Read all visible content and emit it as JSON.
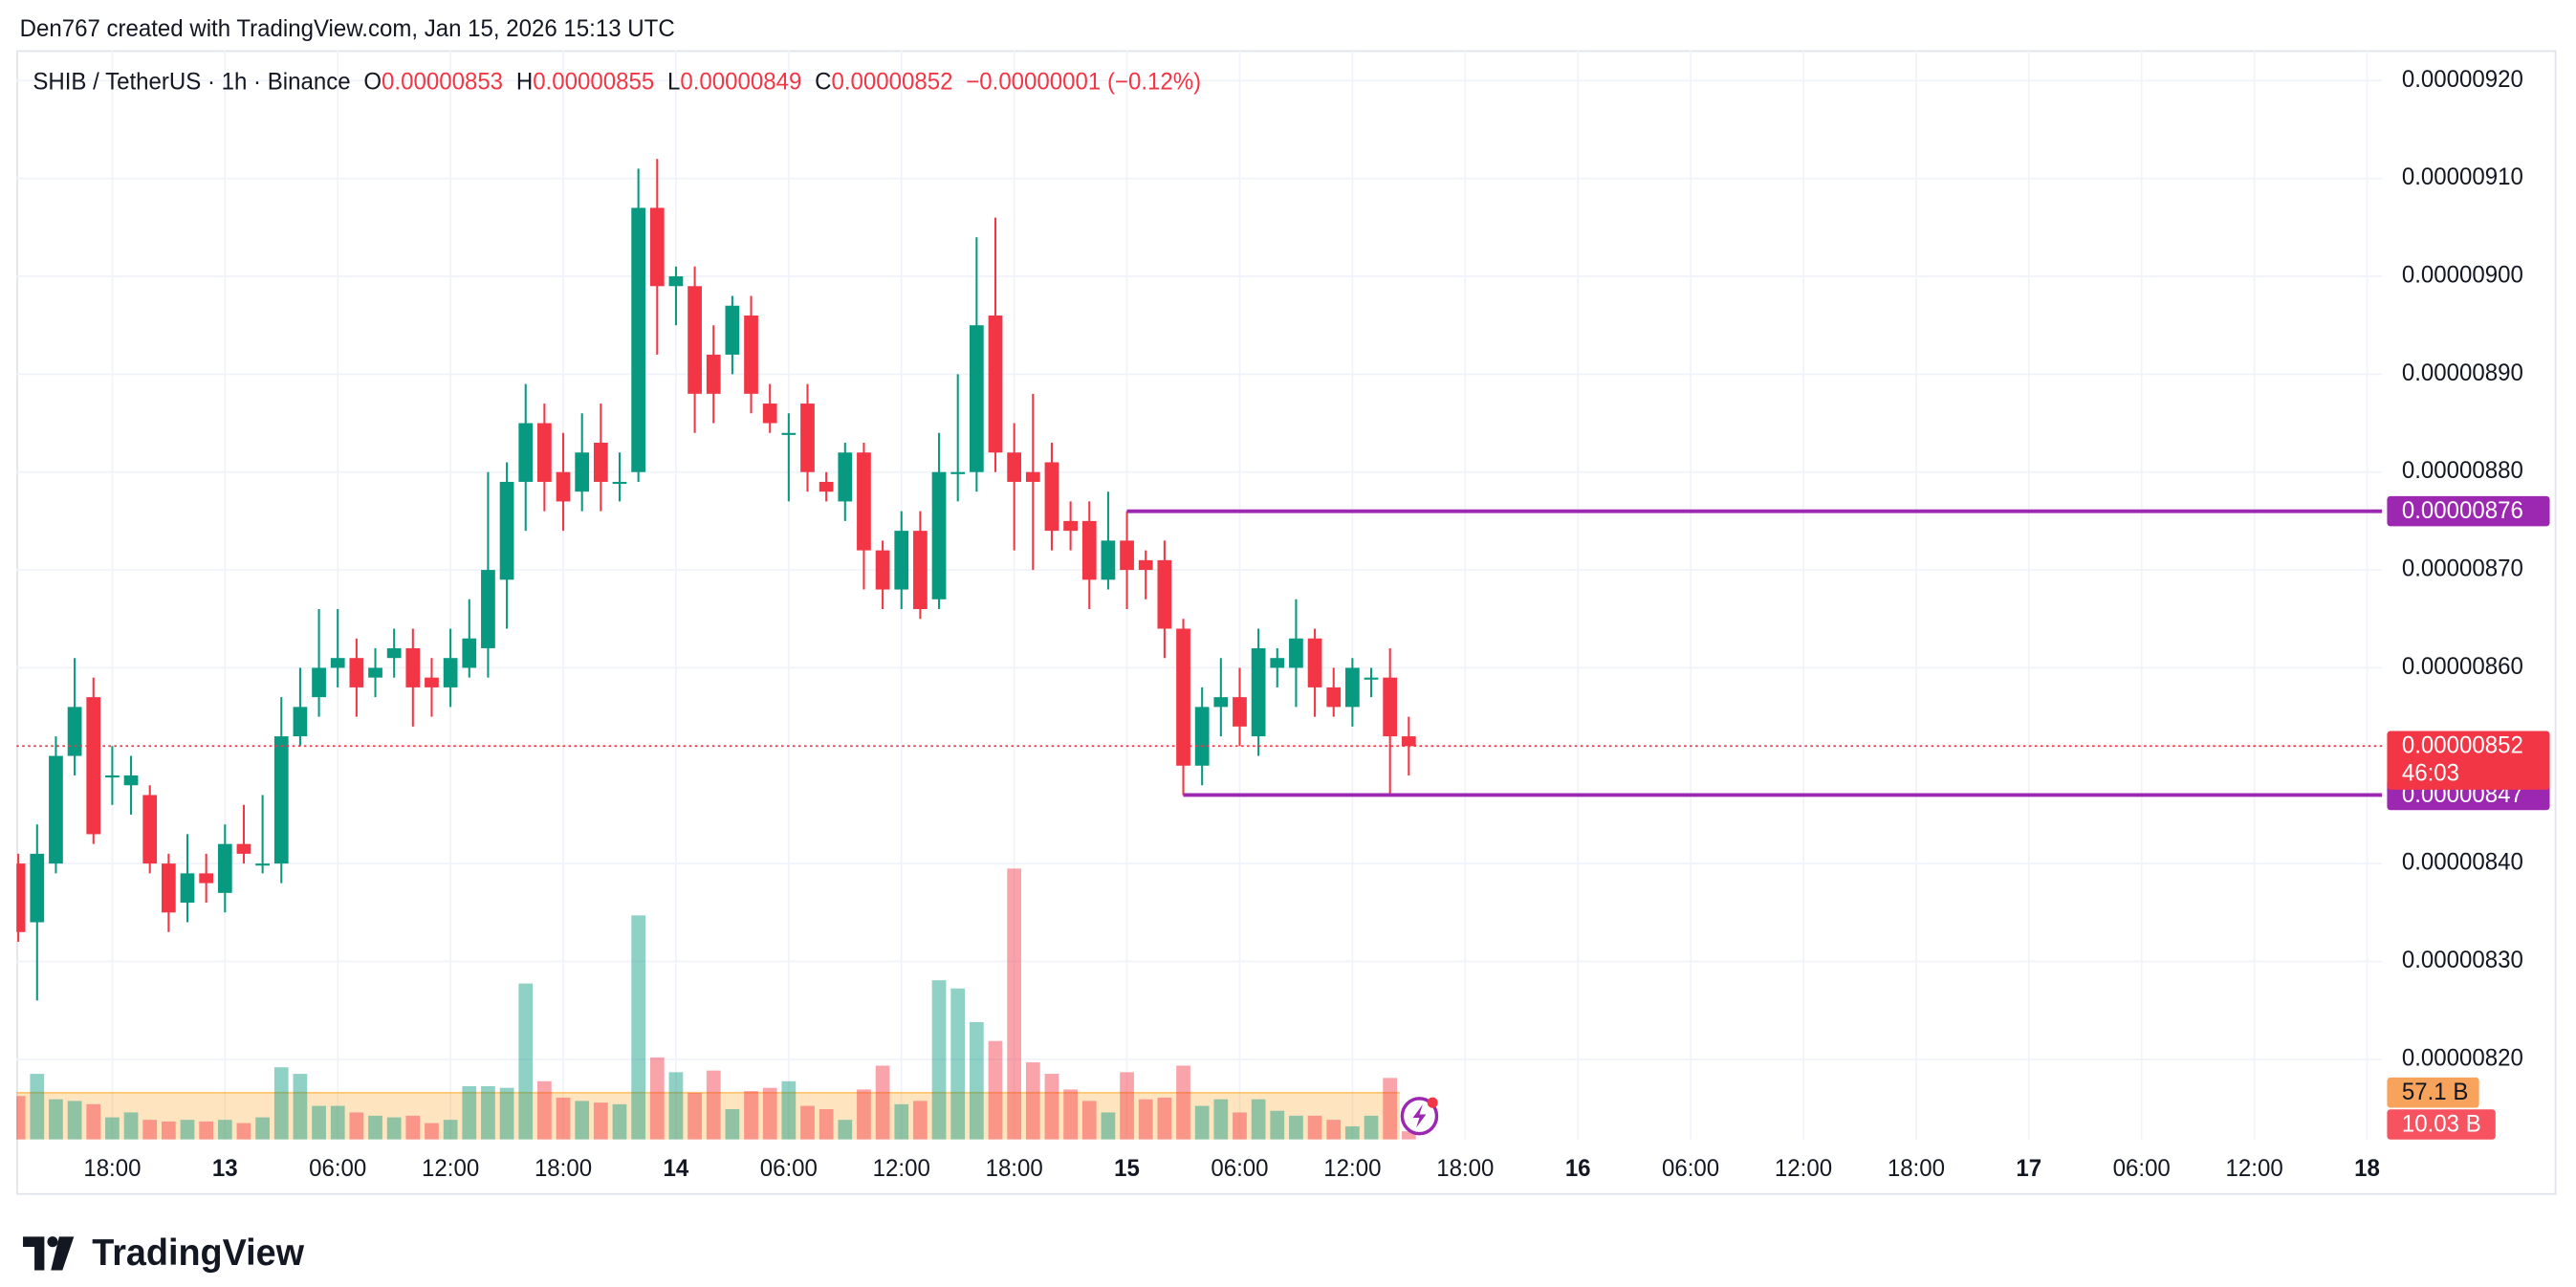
{
  "chart_data": {
    "type": "candlestick",
    "header": "Den767 created with TradingView.com, Jan 15, 2026 15:13 UTC",
    "symbol": "SHIB / TetherUS · 1h · Binance",
    "legend_labels": [
      "O",
      "H",
      "L",
      "C"
    ],
    "change": "−0.00000001 (−0.12%)",
    "countdown": "46:03",
    "brand": "TradingView",
    "x": [
      13,
      14,
      15,
      16,
      17,
      18,
      19,
      20,
      21,
      22,
      23,
      24,
      25,
      26,
      27,
      28,
      29,
      30,
      31,
      32,
      33,
      34,
      35,
      36,
      37,
      38,
      39,
      40,
      41,
      42,
      43,
      44,
      45,
      46,
      47,
      48,
      49,
      50,
      51,
      52,
      53,
      54,
      55,
      56,
      57,
      58,
      59,
      60,
      61,
      62,
      63,
      64,
      65,
      66,
      67,
      68,
      69,
      70,
      71,
      72,
      73,
      74,
      75,
      76,
      77,
      78,
      79,
      80,
      81,
      82,
      83,
      84,
      85,
      86,
      87
    ],
    "open": [
      8.4e-06,
      8.34e-06,
      8.4e-06,
      8.51e-06,
      8.57e-06,
      8.49e-06,
      8.48e-06,
      8.47e-06,
      8.4e-06,
      8.36e-06,
      8.39e-06,
      8.37e-06,
      8.42e-06,
      8.4e-06,
      8.4e-06,
      8.53e-06,
      8.57e-06,
      8.6e-06,
      8.61e-06,
      8.59e-06,
      8.61e-06,
      8.62e-06,
      8.59e-06,
      8.58e-06,
      8.6e-06,
      8.62e-06,
      8.69e-06,
      8.79e-06,
      8.85e-06,
      8.8e-06,
      8.78e-06,
      8.83e-06,
      8.79e-06,
      8.8e-06,
      9.07e-06,
      8.99e-06,
      8.99e-06,
      8.92e-06,
      8.92e-06,
      8.96e-06,
      8.87e-06,
      8.84e-06,
      8.87e-06,
      8.79e-06,
      8.77e-06,
      8.82e-06,
      8.72e-06,
      8.68e-06,
      8.74e-06,
      8.67e-06,
      8.8e-06,
      8.8e-06,
      8.96e-06,
      8.82e-06,
      8.8e-06,
      8.81e-06,
      8.75e-06,
      8.75e-06,
      8.69e-06,
      8.73e-06,
      8.71e-06,
      8.71e-06,
      8.64e-06,
      8.5e-06,
      8.56e-06,
      8.57e-06,
      8.53e-06,
      8.6e-06,
      8.6e-06,
      8.63e-06,
      8.58e-06,
      8.56e-06,
      8.59e-06,
      8.59e-06,
      8.53e-06
    ],
    "high": [
      8.41e-06,
      8.44e-06,
      8.53e-06,
      8.61e-06,
      8.59e-06,
      8.52e-06,
      8.51e-06,
      8.48e-06,
      8.41e-06,
      8.43e-06,
      8.41e-06,
      8.44e-06,
      8.46e-06,
      8.47e-06,
      8.57e-06,
      8.6e-06,
      8.66e-06,
      8.66e-06,
      8.63e-06,
      8.62e-06,
      8.64e-06,
      8.64e-06,
      8.61e-06,
      8.64e-06,
      8.67e-06,
      8.8e-06,
      8.81e-06,
      8.89e-06,
      8.87e-06,
      8.84e-06,
      8.86e-06,
      8.87e-06,
      8.82e-06,
      9.11e-06,
      9.12e-06,
      9.01e-06,
      9.01e-06,
      8.95e-06,
      8.98e-06,
      8.98e-06,
      8.89e-06,
      8.86e-06,
      8.89e-06,
      8.8e-06,
      8.83e-06,
      8.83e-06,
      8.73e-06,
      8.76e-06,
      8.76e-06,
      8.84e-06,
      8.9e-06,
      9.04e-06,
      9.06e-06,
      8.85e-06,
      8.88e-06,
      8.83e-06,
      8.77e-06,
      8.77e-06,
      8.78e-06,
      8.76e-06,
      8.72e-06,
      8.73e-06,
      8.65e-06,
      8.58e-06,
      8.61e-06,
      8.6e-06,
      8.64e-06,
      8.62e-06,
      8.67e-06,
      8.64e-06,
      8.6e-06,
      8.61e-06,
      8.6e-06,
      8.62e-06,
      8.55e-06
    ],
    "low": [
      8.32e-06,
      8.26e-06,
      8.39e-06,
      8.49e-06,
      8.42e-06,
      8.46e-06,
      8.45e-06,
      8.39e-06,
      8.33e-06,
      8.34e-06,
      8.36e-06,
      8.35e-06,
      8.4e-06,
      8.39e-06,
      8.38e-06,
      8.52e-06,
      8.55e-06,
      8.58e-06,
      8.55e-06,
      8.57e-06,
      8.59e-06,
      8.54e-06,
      8.55e-06,
      8.56e-06,
      8.59e-06,
      8.59e-06,
      8.64e-06,
      8.74e-06,
      8.76e-06,
      8.74e-06,
      8.76e-06,
      8.76e-06,
      8.77e-06,
      8.79e-06,
      8.92e-06,
      8.95e-06,
      8.84e-06,
      8.85e-06,
      8.9e-06,
      8.86e-06,
      8.84e-06,
      8.77e-06,
      8.78e-06,
      8.77e-06,
      8.75e-06,
      8.68e-06,
      8.66e-06,
      8.66e-06,
      8.65e-06,
      8.66e-06,
      8.77e-06,
      8.78e-06,
      8.8e-06,
      8.72e-06,
      8.7e-06,
      8.72e-06,
      8.72e-06,
      8.66e-06,
      8.68e-06,
      8.66e-06,
      8.67e-06,
      8.61e-06,
      8.47e-06,
      8.48e-06,
      8.53e-06,
      8.52e-06,
      8.51e-06,
      8.58e-06,
      8.56e-06,
      8.55e-06,
      8.55e-06,
      8.54e-06,
      8.57e-06,
      8.47e-06,
      8.49e-06
    ],
    "close": [
      8.33e-06,
      8.41e-06,
      8.51e-06,
      8.56e-06,
      8.43e-06,
      8.49e-06,
      8.49e-06,
      8.4e-06,
      8.35e-06,
      8.39e-06,
      8.38e-06,
      8.42e-06,
      8.41e-06,
      8.4e-06,
      8.53e-06,
      8.56e-06,
      8.6e-06,
      8.61e-06,
      8.58e-06,
      8.6e-06,
      8.62e-06,
      8.58e-06,
      8.58e-06,
      8.61e-06,
      8.63e-06,
      8.7e-06,
      8.79e-06,
      8.85e-06,
      8.79e-06,
      8.77e-06,
      8.82e-06,
      8.79e-06,
      8.79e-06,
      9.07e-06,
      8.99e-06,
      9e-06,
      8.88e-06,
      8.88e-06,
      8.97e-06,
      8.88e-06,
      8.85e-06,
      8.84e-06,
      8.8e-06,
      8.78e-06,
      8.82e-06,
      8.72e-06,
      8.68e-06,
      8.74e-06,
      8.66e-06,
      8.8e-06,
      8.8e-06,
      8.95e-06,
      8.82e-06,
      8.79e-06,
      8.79e-06,
      8.74e-06,
      8.74e-06,
      8.69e-06,
      8.73e-06,
      8.7e-06,
      8.7e-06,
      8.64e-06,
      8.5e-06,
      8.56e-06,
      8.57e-06,
      8.54e-06,
      8.62e-06,
      8.61e-06,
      8.63e-06,
      8.58e-06,
      8.56e-06,
      8.6e-06,
      8.59e-06,
      8.53e-06,
      8.52e-06
    ],
    "volume": [
      53,
      80,
      49,
      47,
      43,
      27,
      33,
      24,
      22,
      24,
      22,
      24,
      20,
      27,
      88,
      80,
      41,
      41,
      33,
      29,
      27,
      29,
      20,
      24,
      65,
      65,
      63,
      190,
      71,
      51,
      47,
      45,
      43,
      273,
      100,
      82,
      57,
      84,
      37,
      59,
      63,
      71,
      41,
      37,
      24,
      61,
      90,
      43,
      47,
      194,
      184,
      143,
      120,
      330,
      94,
      80,
      61,
      47,
      33,
      82,
      49,
      51,
      90,
      41,
      49,
      33,
      49,
      35,
      29,
      29,
      24,
      16,
      29,
      75,
      10.03
    ],
    "volume_ma": {
      "value": 57.1,
      "label": "57.1 B"
    },
    "volume_last": {
      "value": 10.03,
      "label": "10.03 B"
    },
    "up_color": "#089981",
    "down_color": "#f23645",
    "hlines": [
      {
        "value": 8.76e-06,
        "start": 72,
        "color": "#9c27b0"
      },
      {
        "value": 8.47e-06,
        "start": 75,
        "color": "#9c27b0"
      }
    ],
    "xlim": [
      12.9,
      138.8
    ],
    "ylim": [
      8.118e-06,
      9.231e-06
    ],
    "xticks": [
      {
        "value": 18,
        "label": "18:00"
      },
      {
        "value": 24,
        "label": "13"
      },
      {
        "value": 30,
        "label": "06:00"
      },
      {
        "value": 36,
        "label": "12:00"
      },
      {
        "value": 42,
        "label": "18:00"
      },
      {
        "value": 48,
        "label": "14"
      },
      {
        "value": 54,
        "label": "06:00"
      },
      {
        "value": 60,
        "label": "12:00"
      },
      {
        "value": 66,
        "label": "18:00"
      },
      {
        "value": 72,
        "label": "15"
      },
      {
        "value": 78,
        "label": "06:00"
      },
      {
        "value": 84,
        "label": "12:00"
      },
      {
        "value": 90,
        "label": "18:00"
      },
      {
        "value": 96,
        "label": "16"
      },
      {
        "value": 102,
        "label": "06:00"
      },
      {
        "value": 108,
        "label": "12:00"
      },
      {
        "value": 114,
        "label": "18:00"
      },
      {
        "value": 120,
        "label": "17"
      },
      {
        "value": 126,
        "label": "06:00"
      },
      {
        "value": 132,
        "label": "12:00"
      },
      {
        "value": 138,
        "label": "18"
      }
    ],
    "yticks": [
      {
        "value": 8.2e-06,
        "label": "0.00000820"
      },
      {
        "value": 8.3e-06,
        "label": "0.00000830"
      },
      {
        "value": 8.4e-06,
        "label": "0.00000840"
      },
      {
        "value": 8.6e-06,
        "label": "0.00000860"
      },
      {
        "value": 8.7e-06,
        "label": "0.00000870"
      },
      {
        "value": 8.8e-06,
        "label": "0.00000880"
      },
      {
        "value": 8.9e-06,
        "label": "0.00000890"
      },
      {
        "value": 9e-06,
        "label": "0.00000900"
      },
      {
        "value": 9.1e-06,
        "label": "0.00000910"
      },
      {
        "value": 9.2e-06,
        "label": "0.00000920"
      }
    ],
    "grid": true
  }
}
